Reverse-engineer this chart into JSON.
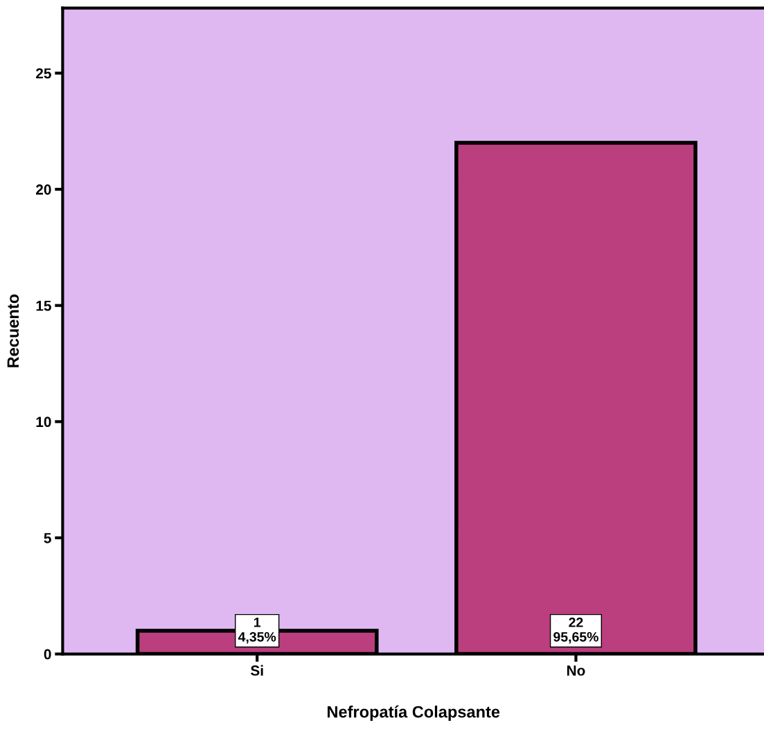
{
  "chart_data": {
    "type": "bar",
    "xlabel": "Nefropatía Colapsante",
    "ylabel": "Recuento",
    "categories": [
      "Si",
      "No"
    ],
    "values": [
      1,
      22
    ],
    "color": "#bb3f7f",
    "value_labels": [
      "1\n4,35%",
      "22\n95,65%"
    ],
    "ylim": [
      0,
      27.8
    ],
    "yticks": [
      0,
      5,
      10,
      15,
      20,
      25
    ],
    "grid": false,
    "legend": false
  }
}
